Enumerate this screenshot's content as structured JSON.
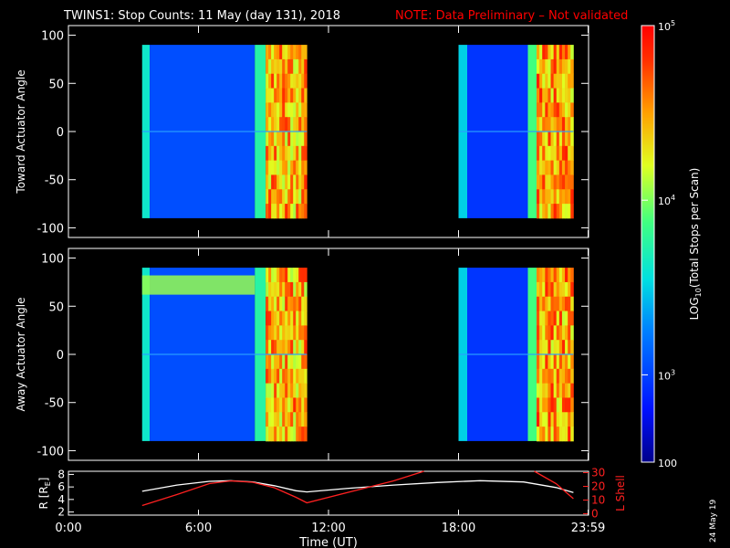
{
  "header": {
    "title": "TWINS1: Stop Counts: 11 May (day 131), 2018",
    "note": "NOTE: Data Preliminary – Not validated"
  },
  "footer": {
    "date_stamp": "24 May 19"
  },
  "colors": {
    "background": "#000000",
    "text": "#ffffff",
    "note": "#ff0000",
    "lshell_line": "#ff2020",
    "radius_line": "#ffffff"
  },
  "chart_data": [
    {
      "type": "heatmap",
      "name": "toward",
      "ylabel": "Toward Actuator Angle",
      "yticks": [
        100,
        50,
        0,
        -50,
        -100
      ],
      "ylim": [
        -110,
        110
      ],
      "xlim": [
        0,
        24
      ],
      "angle_range": [
        -90,
        90
      ],
      "blocks": [
        {
          "start": 3.4,
          "end": 11.0,
          "segments": [
            {
              "start": 3.4,
              "end": 3.75,
              "level": 0.45
            },
            {
              "start": 3.75,
              "end": 8.6,
              "level": 0.22
            },
            {
              "start": 8.6,
              "end": 9.1,
              "level": 0.5
            },
            {
              "start": 9.1,
              "end": 11.0,
              "level": 0.8
            }
          ]
        },
        {
          "start": 18.0,
          "end": 23.3,
          "segments": [
            {
              "start": 18.0,
              "end": 18.4,
              "level": 0.4
            },
            {
              "start": 18.4,
              "end": 21.2,
              "level": 0.18
            },
            {
              "start": 21.2,
              "end": 21.6,
              "level": 0.55
            },
            {
              "start": 21.6,
              "end": 23.3,
              "level": 0.82
            }
          ]
        }
      ]
    },
    {
      "type": "heatmap",
      "name": "away",
      "ylabel": "Away Actuator Angle",
      "yticks": [
        100,
        50,
        0,
        -50,
        -100
      ],
      "ylim": [
        -110,
        110
      ],
      "xlim": [
        0,
        24
      ],
      "angle_range": [
        -90,
        90
      ],
      "blocks": [
        {
          "start": 3.4,
          "end": 11.0,
          "segments": [
            {
              "start": 3.4,
              "end": 3.75,
              "level": 0.45
            },
            {
              "start": 3.75,
              "end": 8.6,
              "level": 0.22
            },
            {
              "start": 8.6,
              "end": 9.1,
              "level": 0.5
            },
            {
              "start": 9.1,
              "end": 11.0,
              "level": 0.8
            }
          ]
        },
        {
          "start": 18.0,
          "end": 23.3,
          "segments": [
            {
              "start": 18.0,
              "end": 18.4,
              "level": 0.4
            },
            {
              "start": 18.4,
              "end": 21.2,
              "level": 0.18
            },
            {
              "start": 21.2,
              "end": 21.6,
              "level": 0.55
            },
            {
              "start": 21.6,
              "end": 23.3,
              "level": 0.82
            }
          ]
        }
      ],
      "band": {
        "angle_min": 62,
        "angle_max": 82,
        "start": 3.4,
        "end": 8.6,
        "level": 0.62
      }
    },
    {
      "type": "line",
      "name": "orbit",
      "xlabel": "Time (UT)",
      "xticks": [
        {
          "value": 0,
          "label": "0:00"
        },
        {
          "value": 6,
          "label": "6:00"
        },
        {
          "value": 12,
          "label": "12:00"
        },
        {
          "value": 18,
          "label": "18:00"
        },
        {
          "value": 23.98,
          "label": "23:59"
        }
      ],
      "xlim": [
        0,
        24
      ],
      "left_axis": {
        "label": "R [R",
        "label_sub": "E",
        "label_end": "]",
        "ticks": [
          2,
          4,
          6,
          8
        ],
        "lim": [
          1.5,
          8.5
        ]
      },
      "right_axis": {
        "label": "L Shell",
        "ticks": [
          0,
          10,
          20,
          30
        ],
        "lim": [
          -1,
          31
        ]
      },
      "series": [
        {
          "axis": "left",
          "color": "#ffffff",
          "x": [
            3.4,
            5,
            6.5,
            7.5,
            8.5,
            9.5,
            10.5,
            11,
            13,
            15,
            17,
            19,
            21,
            22.5,
            23.3
          ],
          "y": [
            5.3,
            6.3,
            6.9,
            7.0,
            6.8,
            6.2,
            5.4,
            5.2,
            5.8,
            6.3,
            6.7,
            7.0,
            6.8,
            5.9,
            5.1
          ]
        },
        {
          "axis": "right",
          "color": "#ff2020",
          "x": [
            3.4,
            5,
            6.5,
            7.5,
            8.5,
            9.5,
            10.5,
            11,
            13,
            15,
            16.4
          ],
          "y": [
            6,
            14,
            22,
            24,
            23,
            19,
            12,
            8,
            16,
            24,
            31
          ]
        },
        {
          "axis": "right",
          "color": "#ff2020",
          "x": [
            21.5,
            22.5,
            23.3
          ],
          "y": [
            31,
            22,
            11
          ]
        }
      ]
    }
  ],
  "colorbar": {
    "label_prefix": "LOG",
    "label_sub": "10",
    "label_suffix": "(Total Stops per Scan)",
    "ticks": [
      {
        "base": "10",
        "exp": "5",
        "frac": 1.0
      },
      {
        "base": "10",
        "exp": "4",
        "frac": 0.6
      },
      {
        "base": "10",
        "exp": "3",
        "frac": 0.2
      },
      {
        "base": "100",
        "exp": "",
        "frac": 0.0
      }
    ]
  }
}
